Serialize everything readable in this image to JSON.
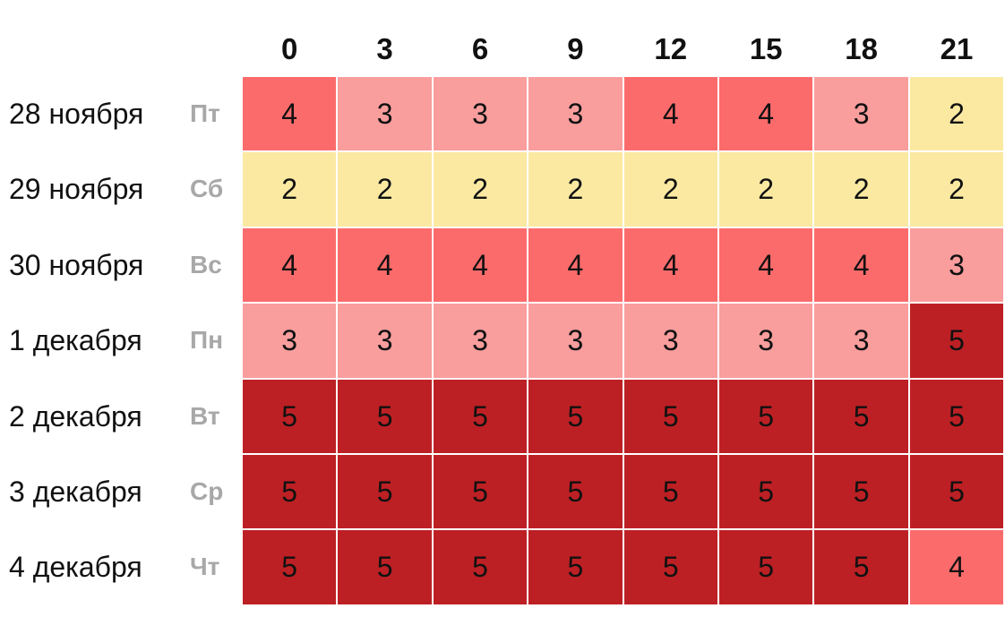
{
  "chart_data": {
    "type": "heatmap",
    "columns": [
      "0",
      "3",
      "6",
      "9",
      "12",
      "15",
      "18",
      "21"
    ],
    "rows": [
      {
        "date": "28 ноября",
        "weekday": "Пт",
        "values": [
          4,
          3,
          3,
          3,
          4,
          4,
          3,
          2
        ]
      },
      {
        "date": "29 ноября",
        "weekday": "Сб",
        "values": [
          2,
          2,
          2,
          2,
          2,
          2,
          2,
          2
        ]
      },
      {
        "date": "30 ноября",
        "weekday": "Вс",
        "values": [
          4,
          4,
          4,
          4,
          4,
          4,
          4,
          3
        ]
      },
      {
        "date": "1 декабря",
        "weekday": "Пн",
        "values": [
          3,
          3,
          3,
          3,
          3,
          3,
          3,
          5
        ]
      },
      {
        "date": "2 декабря",
        "weekday": "Вт",
        "values": [
          5,
          5,
          5,
          5,
          5,
          5,
          5,
          5
        ]
      },
      {
        "date": "3 декабря",
        "weekday": "Ср",
        "values": [
          5,
          5,
          5,
          5,
          5,
          5,
          5,
          5
        ]
      },
      {
        "date": "4 декабря",
        "weekday": "Чт",
        "values": [
          5,
          5,
          5,
          5,
          5,
          5,
          5,
          4
        ]
      }
    ],
    "color_scale": {
      "2": "#fbe9a2",
      "3": "#f99d9d",
      "4": "#fc6b6b",
      "5": "#bd2024"
    },
    "weekday_color": "#a8a8a8"
  }
}
